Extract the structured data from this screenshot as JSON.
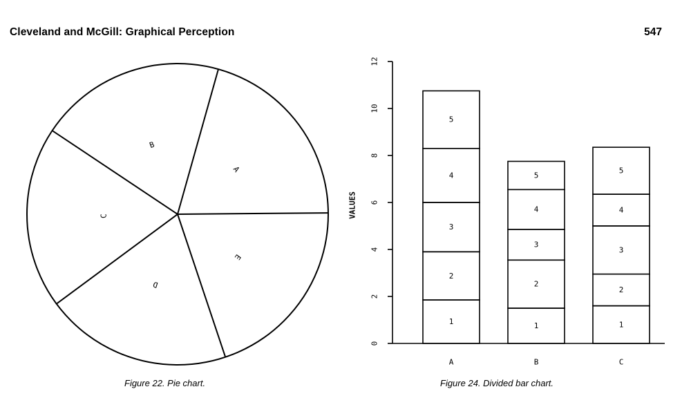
{
  "header": {
    "running_head": "Cleveland and McGill: Graphical Perception",
    "page_number": "547"
  },
  "captions": {
    "left": "Figure 22. Pie chart.",
    "right": "Figure 24. Divided bar chart."
  },
  "chart_data": [
    {
      "type": "pie",
      "labels": [
        "A",
        "B",
        "C",
        "D",
        "E"
      ],
      "values": [
        20.5,
        20.0,
        19.5,
        20.0,
        20.0
      ],
      "title": ""
    },
    {
      "type": "bar",
      "stacked": true,
      "categories": [
        "A",
        "B",
        "C"
      ],
      "series": [
        {
          "name": "1",
          "values": [
            1.85,
            1.5,
            1.6
          ]
        },
        {
          "name": "2",
          "values": [
            2.05,
            2.05,
            1.35
          ]
        },
        {
          "name": "3",
          "values": [
            2.1,
            1.3,
            2.05
          ]
        },
        {
          "name": "4",
          "values": [
            2.3,
            1.7,
            1.35
          ]
        },
        {
          "name": "5",
          "values": [
            2.45,
            1.2,
            2.0
          ]
        }
      ],
      "segment_labels": [
        "1",
        "2",
        "3",
        "4",
        "5"
      ],
      "ylabel": "VALUES",
      "ylim": [
        0,
        12
      ],
      "yticks": [
        "0",
        "2",
        "4",
        "6",
        "8",
        "10",
        "12"
      ],
      "grid": false
    }
  ]
}
